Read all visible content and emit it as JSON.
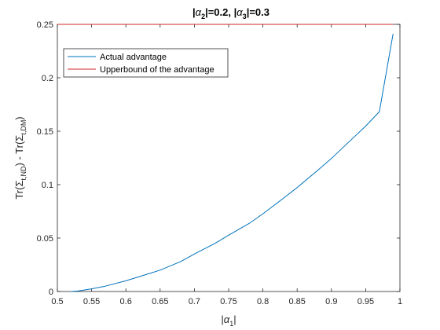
{
  "chart_data": {
    "type": "line",
    "title": {
      "p1": "|",
      "g1": "α",
      "s1": "2",
      "p2": "|=0.2, |",
      "g2": "α",
      "s2": "3",
      "p3": "|=0.3"
    },
    "xlabel": {
      "p1": "|",
      "g1": "α",
      "s1": "1",
      "p2": "|"
    },
    "ylabel": {
      "p1": "Tr(",
      "g1": "Σ",
      "s1": "t,ND",
      "p2": ") - Tr(",
      "g2": "Σ",
      "s2": "t,DM",
      "p3": ")"
    },
    "xlim": [
      0.5,
      1.0
    ],
    "ylim": [
      0,
      0.25
    ],
    "xticks": [
      0.5,
      0.55,
      0.6,
      0.65,
      0.7,
      0.75,
      0.8,
      0.85,
      0.9,
      0.95,
      1
    ],
    "xtick_labels": [
      "0.5",
      "0.55",
      "0.6",
      "0.65",
      "0.7",
      "0.75",
      "0.8",
      "0.85",
      "0.9",
      "0.95",
      "1"
    ],
    "yticks": [
      0,
      0.05,
      0.1,
      0.15,
      0.2,
      0.25
    ],
    "ytick_labels": [
      "0",
      "0.05",
      "0.1",
      "0.15",
      "0.2",
      "0.25"
    ],
    "grid": false,
    "legend_position": "top-left",
    "series": [
      {
        "name": "Actual advantage",
        "color": "#0072bd",
        "x": [
          0.52,
          0.53,
          0.55,
          0.57,
          0.6,
          0.63,
          0.65,
          0.68,
          0.7,
          0.73,
          0.75,
          0.78,
          0.8,
          0.83,
          0.85,
          0.88,
          0.9,
          0.93,
          0.95,
          0.97,
          0.99
        ],
        "y": [
          0.0,
          0.0005,
          0.0025,
          0.005,
          0.01,
          0.016,
          0.02,
          0.028,
          0.0351,
          0.045,
          0.0527,
          0.0637,
          0.0727,
          0.0873,
          0.0973,
          0.1134,
          0.1245,
          0.1427,
          0.1548,
          0.1683,
          0.2411
        ]
      },
      {
        "name": "Upperbound of the advantage",
        "color": "#d62728",
        "x": [
          0.5,
          0.99
        ],
        "y": [
          0.25,
          0.25
        ]
      }
    ]
  }
}
